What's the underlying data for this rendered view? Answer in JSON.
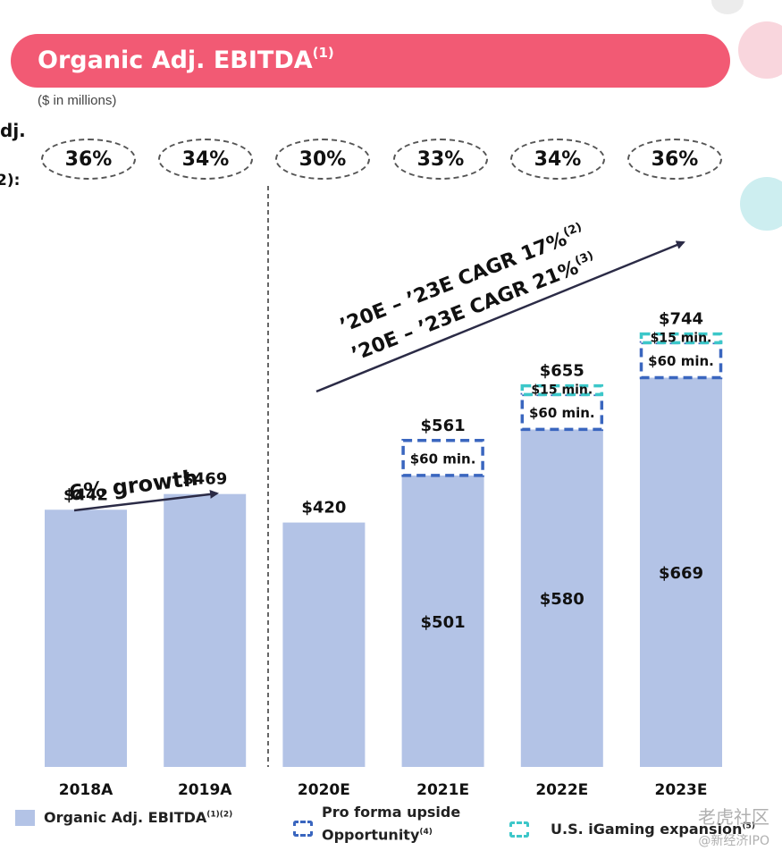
{
  "header": {
    "title": "Organic Adj. EBITDA",
    "title_sup": "(1)",
    "units": "($ in millions)",
    "left_cut_1": "dj.",
    "left_cut_2": "2):"
  },
  "margins": {
    "values": [
      "36%",
      "34%",
      "30%",
      "33%",
      "34%",
      "36%"
    ]
  },
  "annotations": {
    "growth": "6% growth",
    "cagr1": "’20E – ’23E CAGR 17%",
    "cagr1_sup": "(2)",
    "cagr2": "’20E – ’23E CAGR 21%",
    "cagr2_sup": "(3)"
  },
  "chart_data": {
    "type": "bar",
    "categories": [
      "2018A",
      "2019A",
      "2020E",
      "2021E",
      "2022E",
      "2023E"
    ],
    "ylim": [
      0,
      744
    ],
    "series": [
      {
        "name": "Organic Adj. EBITDA",
        "values": [
          442,
          469,
          420,
          501,
          580,
          669
        ]
      },
      {
        "name": "Pro forma upside Opportunity",
        "values": [
          0,
          0,
          0,
          60,
          60,
          60
        ]
      },
      {
        "name": "U.S. iGaming expansion",
        "values": [
          0,
          0,
          0,
          0,
          15,
          15
        ]
      }
    ],
    "totals": [
      "$442",
      "$469",
      "$420",
      "$561",
      "$655",
      "$744"
    ],
    "inside_labels": [
      "",
      "",
      "",
      "$501",
      "$580",
      "$669"
    ],
    "upside_labels": [
      "",
      "",
      "",
      "$60 min.",
      "$60 min.",
      "$60 min."
    ],
    "igaming_labels": [
      "",
      "",
      "",
      "",
      "$15 min.",
      "$15 min."
    ],
    "colors": {
      "base": "#b3c3e6",
      "upside": "#3a66bf",
      "igaming": "#3cc7c9"
    }
  },
  "legend": {
    "item1": "Organic Adj. EBITDA",
    "item1_sup": "(1)(2)",
    "item2_line1": "Pro forma upside",
    "item2_line2": "Opportunity",
    "item2_sup": "(4)",
    "item3": "U.S. iGaming expansion",
    "item3_sup": "(5)"
  },
  "watermark": {
    "line1": "老虎社区",
    "line2": "@新经济IPO"
  }
}
